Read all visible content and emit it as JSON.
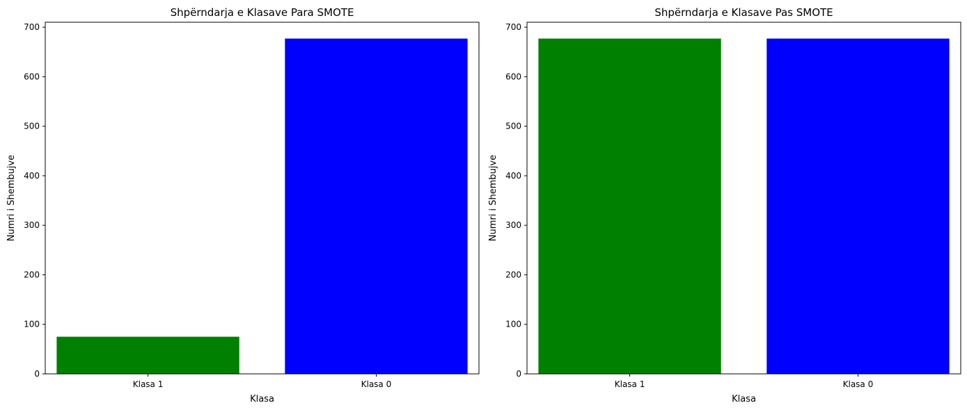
{
  "chart_data": [
    {
      "type": "bar",
      "title": "Shpërndarja e Klasave Para SMOTE",
      "xlabel": "Klasa",
      "ylabel": "Numri i Shembujve",
      "categories": [
        "Klasa 1",
        "Klasa 0"
      ],
      "values": [
        75,
        677
      ],
      "colors": [
        "#008000",
        "#0000ff"
      ],
      "ylim": [
        0,
        710
      ],
      "yticks": [
        0,
        100,
        200,
        300,
        400,
        500,
        600,
        700
      ],
      "grid": false
    },
    {
      "type": "bar",
      "title": "Shpërndarja e Klasave Pas SMOTE",
      "xlabel": "Klasa",
      "ylabel": "Numri i Shembujve",
      "categories": [
        "Klasa 1",
        "Klasa 0"
      ],
      "values": [
        677,
        677
      ],
      "colors": [
        "#008000",
        "#0000ff"
      ],
      "ylim": [
        0,
        710
      ],
      "yticks": [
        0,
        100,
        200,
        300,
        400,
        500,
        600,
        700
      ],
      "grid": false
    }
  ]
}
